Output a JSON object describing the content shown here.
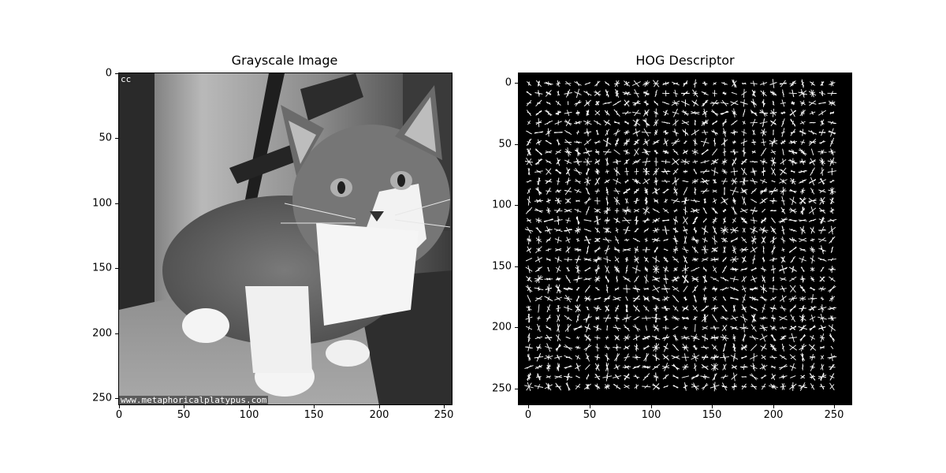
{
  "figure": {
    "left_panel": {
      "title": "Grayscale Image",
      "x_ticks": [
        "0",
        "50",
        "100",
        "150",
        "200",
        "250"
      ],
      "y_ticks": [
        "0",
        "50",
        "100",
        "150",
        "200",
        "250"
      ],
      "corner_text": "cc",
      "watermark_text": "www.metaphoricalplatypus.com"
    },
    "right_panel": {
      "title": "HOG Descriptor",
      "x_ticks": [
        "0",
        "50",
        "100",
        "150",
        "200",
        "250"
      ],
      "y_ticks": [
        "0",
        "50",
        "100",
        "150",
        "200",
        "250"
      ]
    }
  }
}
